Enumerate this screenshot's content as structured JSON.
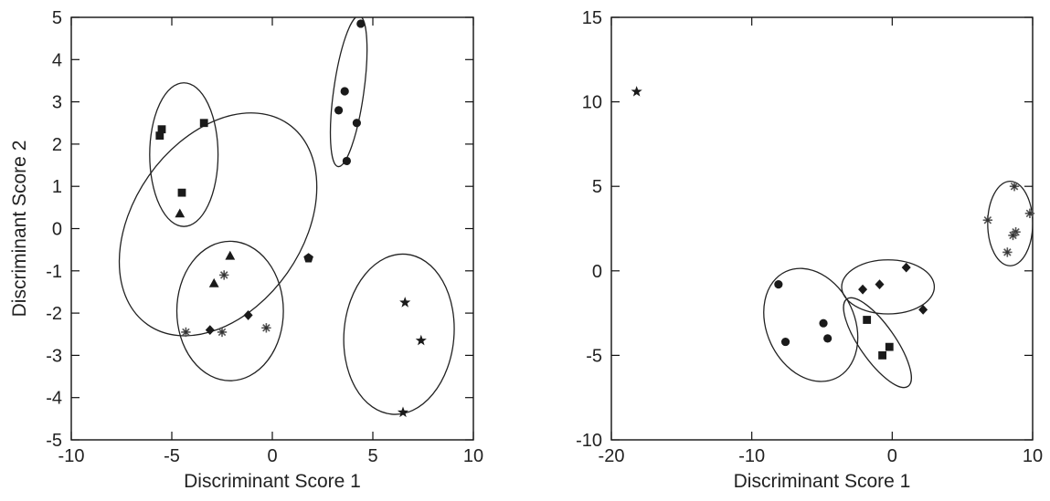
{
  "chart_data": [
    {
      "type": "scatter",
      "xlabel": "Discriminant Score 1",
      "ylabel": "Discriminant Score 2",
      "xlim": [
        -10,
        10
      ],
      "ylim": [
        -5,
        5
      ],
      "xticks": [
        -10,
        -5,
        0,
        5,
        10
      ],
      "yticks": [
        -5,
        -4,
        -3,
        -2,
        -1,
        0,
        1,
        2,
        3,
        4,
        5
      ],
      "grid": false,
      "points": [
        {
          "marker": "circle",
          "x": 4.4,
          "y": 4.85
        },
        {
          "marker": "circle",
          "x": 3.6,
          "y": 3.25
        },
        {
          "marker": "circle",
          "x": 3.3,
          "y": 2.8
        },
        {
          "marker": "circle",
          "x": 4.2,
          "y": 2.5
        },
        {
          "marker": "circle",
          "x": 3.7,
          "y": 1.6
        },
        {
          "marker": "square",
          "x": -5.5,
          "y": 2.35
        },
        {
          "marker": "square",
          "x": -5.6,
          "y": 2.2
        },
        {
          "marker": "square",
          "x": -3.4,
          "y": 2.5
        },
        {
          "marker": "square",
          "x": -4.5,
          "y": 0.85
        },
        {
          "marker": "triangle",
          "x": -4.6,
          "y": 0.35
        },
        {
          "marker": "triangle",
          "x": -2.1,
          "y": -0.65
        },
        {
          "marker": "triangle",
          "x": -2.9,
          "y": -1.3
        },
        {
          "marker": "asterisk",
          "x": -2.4,
          "y": -1.1
        },
        {
          "marker": "diamond",
          "x": -1.2,
          "y": -2.05
        },
        {
          "marker": "diamond",
          "x": -3.1,
          "y": -2.4
        },
        {
          "marker": "asterisk",
          "x": -4.3,
          "y": -2.45
        },
        {
          "marker": "asterisk",
          "x": -2.5,
          "y": -2.45
        },
        {
          "marker": "asterisk",
          "x": -0.3,
          "y": -2.35
        },
        {
          "marker": "pentagon",
          "x": 1.8,
          "y": -0.7
        },
        {
          "marker": "star",
          "x": 6.6,
          "y": -1.75
        },
        {
          "marker": "star",
          "x": 7.4,
          "y": -2.65
        },
        {
          "marker": "star",
          "x": 6.5,
          "y": -4.35
        }
      ],
      "ellipses": [
        {
          "cx": 3.8,
          "cy": 3.25,
          "rx": 0.75,
          "ry": 1.8,
          "angle": 8
        },
        {
          "cx": -4.4,
          "cy": 1.75,
          "rx": 1.7,
          "ry": 1.7,
          "angle": 0
        },
        {
          "cx": -2.7,
          "cy": 0.1,
          "rx": 6.1,
          "ry": 2.0,
          "angle": 125
        },
        {
          "cx": -2.1,
          "cy": -1.95,
          "rx": 2.65,
          "ry": 1.65,
          "angle": 0
        },
        {
          "cx": 6.3,
          "cy": -2.5,
          "rx": 4.0,
          "ry": 1.3,
          "angle": 95
        }
      ]
    },
    {
      "type": "scatter",
      "xlabel": "Discriminant Score 1",
      "ylabel": "",
      "xlim": [
        -20,
        10
      ],
      "ylim": [
        -10,
        15
      ],
      "xticks": [
        -20,
        -10,
        0,
        10
      ],
      "yticks": [
        -10,
        -5,
        0,
        5,
        10,
        15
      ],
      "grid": false,
      "points": [
        {
          "marker": "star",
          "x": -18.2,
          "y": 10.6
        },
        {
          "marker": "asterisk",
          "x": 6.8,
          "y": 3.0
        },
        {
          "marker": "asterisk",
          "x": 8.7,
          "y": 5.0
        },
        {
          "marker": "asterisk",
          "x": 9.8,
          "y": 3.4
        },
        {
          "marker": "asterisk",
          "x": 8.8,
          "y": 2.3
        },
        {
          "marker": "asterisk",
          "x": 8.6,
          "y": 2.1
        },
        {
          "marker": "asterisk",
          "x": 8.2,
          "y": 1.1
        },
        {
          "marker": "circle",
          "x": -8.1,
          "y": -0.8
        },
        {
          "marker": "circle",
          "x": -7.6,
          "y": -4.2
        },
        {
          "marker": "circle",
          "x": -4.9,
          "y": -3.1
        },
        {
          "marker": "circle",
          "x": -4.6,
          "y": -4.0
        },
        {
          "marker": "diamond",
          "x": 1.0,
          "y": 0.2
        },
        {
          "marker": "diamond",
          "x": -0.9,
          "y": -0.8
        },
        {
          "marker": "diamond",
          "x": -2.1,
          "y": -1.1
        },
        {
          "marker": "diamond",
          "x": 2.2,
          "y": -2.3
        },
        {
          "marker": "square",
          "x": -1.8,
          "y": -2.9
        },
        {
          "marker": "square",
          "x": -0.2,
          "y": -4.5
        },
        {
          "marker": "square",
          "x": -0.7,
          "y": -5.0
        }
      ],
      "ellipses": [
        {
          "cx": 8.4,
          "cy": 2.8,
          "rx": 1.6,
          "ry": 2.5,
          "angle": 0
        },
        {
          "cx": -5.8,
          "cy": -3.2,
          "rx": 4.2,
          "ry": 2.6,
          "angle": 245
        },
        {
          "cx": -0.3,
          "cy": -0.95,
          "rx": 3.3,
          "ry": 1.6,
          "angle": 0
        },
        {
          "cx": -1.05,
          "cy": -4.25,
          "rx": 3.8,
          "ry": 1.05,
          "angle": 55
        }
      ]
    }
  ]
}
